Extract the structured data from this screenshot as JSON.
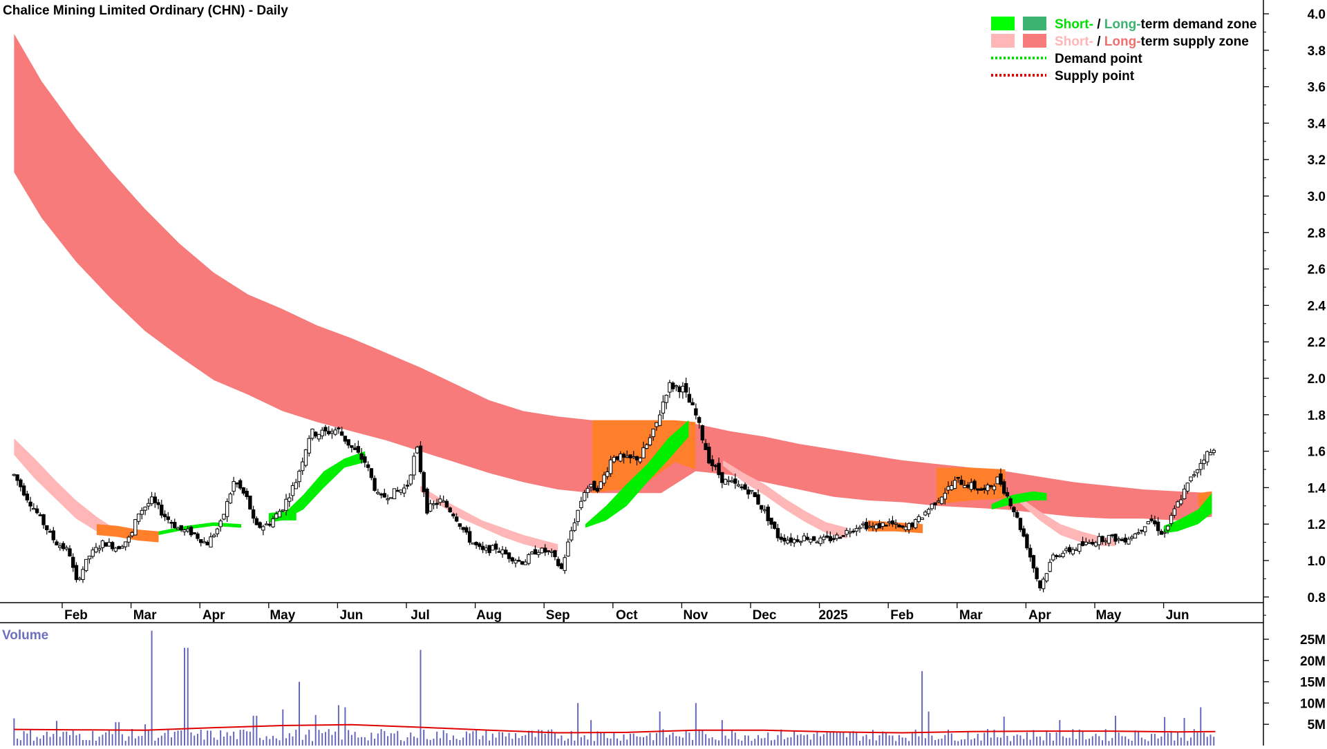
{
  "chart_data": [
    {
      "type": "candlestick",
      "title": "Chalice Mining Limited Ordinary (CHN) - Daily",
      "y_ticks": [
        4.0,
        3.8,
        3.6,
        3.4,
        3.2,
        3.0,
        2.8,
        2.6,
        2.4,
        2.2,
        2.0,
        1.8,
        1.6,
        1.4,
        1.2,
        1.0,
        0.8
      ],
      "y_tick_labels": [
        "4.0",
        "3.8",
        "3.6",
        "3.4",
        "3.2",
        "3.0",
        "2.8",
        "2.6",
        "2.4",
        "2.2",
        "2.0",
        "1.8",
        "1.6",
        "1.4",
        "1.2",
        "1.0",
        "0.8"
      ],
      "ylim": [
        0.7,
        4.05
      ],
      "x_labels": [
        "Feb",
        "Mar",
        "Apr",
        "May",
        "Jun",
        "Jul",
        "Aug",
        "Sep",
        "Oct",
        "Nov",
        "Dec",
        "2025",
        "Feb",
        "Mar",
        "Apr",
        "May",
        "Jun"
      ],
      "month_index": [
        0,
        1,
        2,
        3,
        4,
        5,
        6,
        7,
        8,
        9,
        10,
        11,
        12,
        13,
        14,
        15,
        16
      ],
      "xlim_months": [
        -0.9,
        16.9
      ],
      "legend": [
        {
          "parts": [
            {
              "text": "Short-",
              "color": "#00e000"
            },
            {
              "text": " / ",
              "color": "#000000"
            },
            {
              "text": "Long-",
              "color": "#3cb371"
            },
            {
              "text": "term demand zone",
              "color": "#000000"
            }
          ],
          "swatches": [
            "#00ff00",
            "#3cb371"
          ],
          "style": "box"
        },
        {
          "parts": [
            {
              "text": "Short-",
              "color": "#ffb6b6"
            },
            {
              "text": " / ",
              "color": "#000000"
            },
            {
              "text": "Long-",
              "color": "#f07070"
            },
            {
              "text": "term supply zone",
              "color": "#000000"
            }
          ],
          "swatches": [
            "#ffb6b6",
            "#f77b7b"
          ],
          "style": "box"
        },
        {
          "parts": [
            {
              "text": "Demand point",
              "color": "#000000"
            }
          ],
          "swatches": [
            "#00e000"
          ],
          "style": "dots"
        },
        {
          "parts": [
            {
              "text": "Supply point",
              "color": "#000000"
            }
          ],
          "swatches": [
            "#e00000"
          ],
          "style": "dots"
        }
      ],
      "colors": {
        "long_supply": "#f77b7b",
        "short_supply": "#ffb6b6",
        "short_demand": "#00ee00",
        "overlap": "#ff7f2a",
        "candle": "#000000",
        "axis": "#000000"
      },
      "long_supply_zone": {
        "x_month": [
          -0.9,
          -0.5,
          0,
          0.5,
          1,
          1.5,
          2,
          2.5,
          3,
          3.5,
          4,
          4.5,
          5,
          5.5,
          6,
          6.5,
          7,
          7.5,
          8,
          8.5,
          9,
          9.5,
          10,
          10.5,
          11,
          11.5,
          12,
          12.5,
          13,
          13.5,
          14,
          14.5,
          15,
          15.5,
          16,
          16.5
        ],
        "upper": [
          3.89,
          3.63,
          3.37,
          3.14,
          2.93,
          2.74,
          2.58,
          2.46,
          2.38,
          2.29,
          2.22,
          2.14,
          2.06,
          1.97,
          1.88,
          1.82,
          1.79,
          1.77,
          1.77,
          1.77,
          1.75,
          1.71,
          1.68,
          1.64,
          1.61,
          1.58,
          1.55,
          1.53,
          1.51,
          1.49,
          1.46,
          1.43,
          1.41,
          1.39,
          1.38,
          1.37
        ],
        "lower": [
          3.13,
          2.88,
          2.64,
          2.44,
          2.26,
          2.12,
          1.99,
          1.91,
          1.82,
          1.76,
          1.71,
          1.66,
          1.6,
          1.54,
          1.48,
          1.43,
          1.39,
          1.37,
          1.37,
          1.37,
          1.49,
          1.47,
          1.43,
          1.39,
          1.35,
          1.33,
          1.32,
          1.3,
          1.29,
          1.28,
          1.26,
          1.24,
          1.23,
          1.23,
          1.22,
          1.24
        ]
      },
      "short_supply_zone": [
        {
          "x_month": [
            -0.9,
            -0.6,
            -0.3,
            0.0,
            0.3,
            0.5
          ],
          "upper": [
            1.67,
            1.56,
            1.44,
            1.33,
            1.24,
            1.19
          ],
          "lower": [
            1.58,
            1.45,
            1.34,
            1.23,
            1.16,
            1.14
          ]
        },
        {
          "x_month": [
            5.0,
            5.3,
            5.6,
            5.9,
            6.2,
            6.5,
            6.8,
            7.0
          ],
          "upper": [
            1.41,
            1.34,
            1.28,
            1.22,
            1.18,
            1.14,
            1.11,
            1.09
          ],
          "lower": [
            1.38,
            1.3,
            1.23,
            1.18,
            1.13,
            1.09,
            1.06,
            1.05
          ]
        },
        {
          "x_month": [
            9.4,
            9.7,
            10.0,
            10.3,
            10.6,
            10.9,
            11.2
          ],
          "upper": [
            1.55,
            1.48,
            1.42,
            1.34,
            1.27,
            1.21,
            1.18
          ],
          "lower": [
            1.52,
            1.43,
            1.36,
            1.28,
            1.21,
            1.15,
            1.12
          ]
        },
        {
          "x_month": [
            13.7,
            14.0,
            14.3,
            14.6,
            14.9,
            15.1
          ],
          "upper": [
            1.35,
            1.27,
            1.2,
            1.16,
            1.13,
            1.12
          ],
          "lower": [
            1.32,
            1.22,
            1.14,
            1.1,
            1.08,
            1.08
          ]
        }
      ],
      "short_demand_zone": [
        {
          "x_month": [
            1.2,
            1.6,
            2.0,
            2.4
          ],
          "upper": [
            1.16,
            1.19,
            1.21,
            1.2
          ],
          "lower": [
            1.14,
            1.17,
            1.19,
            1.18
          ]
        },
        {
          "x_month": [
            2.8,
            3.0,
            3.2
          ],
          "upper": [
            1.26,
            1.27,
            1.26
          ],
          "lower": [
            1.21,
            1.22,
            1.22
          ]
        },
        {
          "x_month": [
            3.0,
            3.3,
            3.6,
            3.9,
            4.2
          ],
          "upper": [
            1.25,
            1.36,
            1.49,
            1.56,
            1.6
          ],
          "lower": [
            1.22,
            1.28,
            1.4,
            1.51,
            1.54
          ]
        },
        {
          "x_month": [
            7.4,
            7.7,
            8.0,
            8.3,
            8.6,
            8.9
          ],
          "upper": [
            1.2,
            1.3,
            1.42,
            1.53,
            1.67,
            1.77
          ],
          "lower": [
            1.18,
            1.22,
            1.3,
            1.43,
            1.55,
            1.68
          ]
        },
        {
          "x_month": [
            13.3,
            13.6,
            13.9,
            14.1
          ],
          "upper": [
            1.31,
            1.36,
            1.38,
            1.37
          ],
          "lower": [
            1.28,
            1.31,
            1.33,
            1.33
          ]
        },
        {
          "x_month": [
            15.8,
            16.0,
            16.3,
            16.5
          ],
          "upper": [
            1.19,
            1.22,
            1.28,
            1.37
          ],
          "lower": [
            1.15,
            1.16,
            1.2,
            1.26
          ]
        }
      ],
      "overlap_zone": [
        {
          "x_month": [
            0.3,
            0.6,
            0.9,
            1.2
          ],
          "upper": [
            1.2,
            1.19,
            1.17,
            1.16
          ],
          "lower": [
            1.14,
            1.13,
            1.11,
            1.1
          ]
        },
        {
          "x_month": [
            7.5,
            7.9,
            8.3,
            8.7,
            9.0
          ],
          "upper": [
            1.77,
            1.77,
            1.77,
            1.77,
            1.76
          ],
          "lower": [
            1.37,
            1.39,
            1.43,
            1.54,
            1.5
          ]
        },
        {
          "x_month": [
            11.5,
            11.9,
            12.3
          ],
          "upper": [
            1.22,
            1.21,
            1.2
          ],
          "lower": [
            1.16,
            1.16,
            1.15
          ]
        },
        {
          "x_month": [
            12.5,
            13.0,
            13.5
          ],
          "upper": [
            1.51,
            1.51,
            1.5
          ],
          "lower": [
            1.31,
            1.33,
            1.34
          ]
        },
        {
          "x_month": [
            16.3,
            16.5
          ],
          "upper": [
            1.37,
            1.38
          ],
          "lower": [
            1.3,
            1.26
          ]
        }
      ],
      "price_path": [
        [
          -0.9,
          1.47
        ],
        [
          -0.7,
          1.34
        ],
        [
          -0.5,
          1.22
        ],
        [
          -0.3,
          1.1
        ],
        [
          -0.1,
          1.05
        ],
        [
          0.0,
          0.88
        ],
        [
          0.2,
          1.03
        ],
        [
          0.4,
          1.1
        ],
        [
          0.6,
          1.07
        ],
        [
          0.8,
          1.13
        ],
        [
          0.9,
          1.26
        ],
        [
          1.1,
          1.33
        ],
        [
          1.3,
          1.24
        ],
        [
          1.5,
          1.17
        ],
        [
          1.7,
          1.15
        ],
        [
          1.9,
          1.09
        ],
        [
          2.1,
          1.2
        ],
        [
          2.3,
          1.44
        ],
        [
          2.5,
          1.33
        ],
        [
          2.6,
          1.18
        ],
        [
          2.8,
          1.2
        ],
        [
          3.0,
          1.29
        ],
        [
          3.2,
          1.44
        ],
        [
          3.4,
          1.7
        ],
        [
          3.6,
          1.7
        ],
        [
          3.8,
          1.72
        ],
        [
          4.0,
          1.62
        ],
        [
          4.2,
          1.54
        ],
        [
          4.4,
          1.34
        ],
        [
          4.6,
          1.37
        ],
        [
          4.8,
          1.4
        ],
        [
          4.95,
          1.62
        ],
        [
          5.1,
          1.28
        ],
        [
          5.3,
          1.33
        ],
        [
          5.5,
          1.25
        ],
        [
          5.7,
          1.12
        ],
        [
          5.9,
          1.05
        ],
        [
          6.1,
          1.07
        ],
        [
          6.3,
          1.02
        ],
        [
          6.5,
          0.99
        ],
        [
          6.7,
          1.06
        ],
        [
          6.9,
          1.04
        ],
        [
          7.05,
          0.95
        ],
        [
          7.2,
          1.17
        ],
        [
          7.4,
          1.4
        ],
        [
          7.6,
          1.4
        ],
        [
          7.8,
          1.58
        ],
        [
          8.0,
          1.55
        ],
        [
          8.2,
          1.57
        ],
        [
          8.4,
          1.71
        ],
        [
          8.6,
          1.96
        ],
        [
          8.8,
          1.95
        ],
        [
          9.0,
          1.8
        ],
        [
          9.2,
          1.55
        ],
        [
          9.4,
          1.44
        ],
        [
          9.6,
          1.41
        ],
        [
          9.8,
          1.38
        ],
        [
          10.0,
          1.27
        ],
        [
          10.2,
          1.13
        ],
        [
          10.4,
          1.11
        ],
        [
          10.6,
          1.13
        ],
        [
          10.8,
          1.11
        ],
        [
          11.0,
          1.12
        ],
        [
          11.2,
          1.16
        ],
        [
          11.4,
          1.2
        ],
        [
          11.6,
          1.18
        ],
        [
          11.8,
          1.21
        ],
        [
          12.0,
          1.17
        ],
        [
          12.2,
          1.21
        ],
        [
          12.4,
          1.29
        ],
        [
          12.6,
          1.37
        ],
        [
          12.8,
          1.44
        ],
        [
          13.0,
          1.41
        ],
        [
          13.2,
          1.38
        ],
        [
          13.4,
          1.45
        ],
        [
          13.6,
          1.3
        ],
        [
          13.8,
          1.1
        ],
        [
          14.0,
          0.85
        ],
        [
          14.2,
          1.03
        ],
        [
          14.4,
          1.05
        ],
        [
          14.6,
          1.08
        ],
        [
          14.8,
          1.11
        ],
        [
          15.0,
          1.13
        ],
        [
          15.2,
          1.11
        ],
        [
          15.4,
          1.15
        ],
        [
          15.6,
          1.23
        ],
        [
          15.8,
          1.14
        ],
        [
          16.0,
          1.31
        ],
        [
          16.2,
          1.45
        ],
        [
          16.4,
          1.58
        ],
        [
          16.55,
          1.6
        ]
      ],
      "volume": {
        "label": "Volume",
        "y_ticks": [
          25,
          20,
          15,
          10,
          5
        ],
        "y_tick_labels": [
          "25M",
          "20M",
          "15M",
          "10M",
          "5M"
        ],
        "ylim": [
          0,
          28
        ],
        "baseline": 3.0,
        "average": [
          [
            -0.9,
            3.8
          ],
          [
            0.0,
            3.7
          ],
          [
            1.0,
            3.6
          ],
          [
            2.0,
            4.2
          ],
          [
            3.0,
            4.7
          ],
          [
            4.0,
            4.9
          ],
          [
            5.0,
            4.3
          ],
          [
            6.0,
            3.6
          ],
          [
            7.0,
            3.0
          ],
          [
            8.0,
            3.1
          ],
          [
            9.0,
            3.6
          ],
          [
            10.0,
            3.6
          ],
          [
            11.0,
            3.2
          ],
          [
            12.0,
            3.0
          ],
          [
            13.0,
            3.3
          ],
          [
            14.0,
            3.4
          ],
          [
            15.0,
            3.4
          ],
          [
            16.0,
            3.2
          ],
          [
            16.55,
            3.3
          ]
        ],
        "spikes": [
          [
            -0.9,
            6.4
          ],
          [
            -0.3,
            5.8
          ],
          [
            0.6,
            5.5
          ],
          [
            1.0,
            5.0
          ],
          [
            1.1,
            27.0
          ],
          [
            1.6,
            23.0
          ],
          [
            2.6,
            7.0
          ],
          [
            3.0,
            8.5
          ],
          [
            3.25,
            15.0
          ],
          [
            3.5,
            7.2
          ],
          [
            3.8,
            9.5
          ],
          [
            3.9,
            9.0
          ],
          [
            5.0,
            22.5
          ],
          [
            7.3,
            10.0
          ],
          [
            7.5,
            6.0
          ],
          [
            8.5,
            8.0
          ],
          [
            9.0,
            10.0
          ],
          [
            9.4,
            6.0
          ],
          [
            12.3,
            17.5
          ],
          [
            12.4,
            8.0
          ],
          [
            13.5,
            6.8
          ],
          [
            14.3,
            6.0
          ],
          [
            15.1,
            7.0
          ],
          [
            15.8,
            6.7
          ],
          [
            16.35,
            9.0
          ],
          [
            16.1,
            6.5
          ]
        ]
      }
    }
  ]
}
